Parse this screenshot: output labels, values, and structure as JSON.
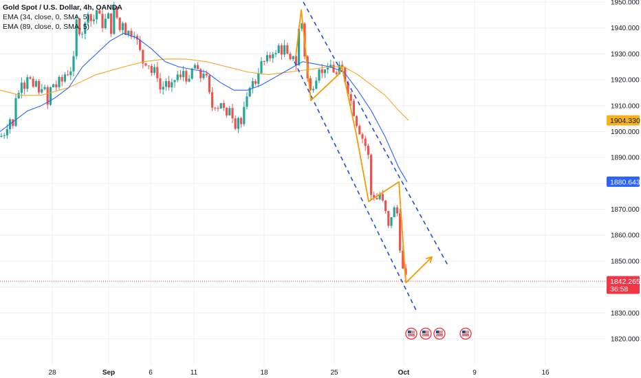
{
  "legend": {
    "title": "Gold Spot / U.S. Dollar, 4h, OANDA",
    "ema1": "EMA (34, close, 0, SMA, 5)",
    "ema2": "EMA (89, close, 0, SMA, 5)"
  },
  "colors": {
    "up": "#26a69a",
    "down": "#ef5350",
    "ema34": "#2962ff",
    "ema89": "#f5a623",
    "drawing": "#f59a00",
    "channel": "#1f4fd8",
    "grid": "#eef0f3"
  },
  "chart_data": {
    "type": "candlestick",
    "title": "Gold Spot / U.S. Dollar, 4h, OANDA",
    "x_tick_labels": [
      "28",
      "Sep",
      "6",
      "11",
      "18",
      "25",
      "Oct",
      "9",
      "16"
    ],
    "ylim": [
      1812,
      1951
    ],
    "y_ticks": [
      1820,
      1830,
      1840,
      1850,
      1860,
      1870,
      1880,
      1890,
      1900,
      1910,
      1920,
      1930,
      1940,
      1950
    ],
    "y_tick_labels": [
      "1820.000",
      "1830.000",
      "1840.000",
      "1850.000",
      "1860.000",
      "1870.000",
      "1880.000",
      "1890.000",
      "1900.000",
      "1910.000",
      "1920.000",
      "1930.000",
      "1940.000",
      "1950.000"
    ],
    "price_tags": [
      {
        "label": "1904.330",
        "value": 1904.33,
        "color": "#f5b21a",
        "text_color": "#131722"
      },
      {
        "label": "1880.643",
        "value": 1880.643,
        "color": "#2962ff",
        "text_color": "#ffffff"
      },
      {
        "label": "1842.265",
        "value": 1842.265,
        "color": "#f23645",
        "text_color": "#ffffff",
        "countdown": "36:58"
      }
    ],
    "current_price": 1842.265,
    "close_path": [
      [
        0,
        1898
      ],
      [
        6,
        1899
      ],
      [
        12,
        1903
      ],
      [
        16,
        1906
      ],
      [
        20,
        1900
      ],
      [
        24,
        1918
      ],
      [
        28,
        1914
      ],
      [
        32,
        1921
      ],
      [
        36,
        1917
      ],
      [
        40,
        1922
      ],
      [
        44,
        1920
      ],
      [
        48,
        1916
      ],
      [
        52,
        1920
      ],
      [
        56,
        1914
      ],
      [
        60,
        1917
      ],
      [
        64,
        1919
      ],
      [
        68,
        1908
      ],
      [
        72,
        1915
      ],
      [
        76,
        1920
      ],
      [
        80,
        1916
      ],
      [
        84,
        1919
      ],
      [
        88,
        1921
      ],
      [
        92,
        1918
      ],
      [
        96,
        1925
      ],
      [
        100,
        1921
      ],
      [
        104,
        1925
      ],
      [
        106,
        1919
      ],
      [
        108,
        1937
      ],
      [
        111,
        1943
      ],
      [
        114,
        1938
      ],
      [
        118,
        1940
      ],
      [
        122,
        1936
      ],
      [
        126,
        1948
      ],
      [
        130,
        1945
      ],
      [
        134,
        1941
      ],
      [
        138,
        1945
      ],
      [
        142,
        1948
      ],
      [
        146,
        1943
      ],
      [
        150,
        1940
      ],
      [
        154,
        1944
      ],
      [
        158,
        1945
      ],
      [
        162,
        1938
      ],
      [
        166,
        1948
      ],
      [
        170,
        1944
      ],
      [
        174,
        1939
      ],
      [
        178,
        1943
      ],
      [
        182,
        1938
      ],
      [
        186,
        1939
      ],
      [
        190,
        1937
      ],
      [
        194,
        1939
      ],
      [
        198,
        1936
      ],
      [
        202,
        1933
      ],
      [
        206,
        1928
      ],
      [
        210,
        1925
      ],
      [
        214,
        1928
      ],
      [
        218,
        1924
      ],
      [
        222,
        1922
      ],
      [
        226,
        1925
      ],
      [
        230,
        1920
      ],
      [
        234,
        1915
      ],
      [
        238,
        1918
      ],
      [
        242,
        1920
      ],
      [
        246,
        1916
      ],
      [
        250,
        1918
      ],
      [
        254,
        1920
      ],
      [
        258,
        1922
      ],
      [
        262,
        1920
      ],
      [
        266,
        1924
      ],
      [
        270,
        1921
      ],
      [
        274,
        1918
      ],
      [
        278,
        1923
      ],
      [
        282,
        1926
      ],
      [
        286,
        1925
      ],
      [
        290,
        1920
      ],
      [
        294,
        1922
      ],
      [
        298,
        1924
      ],
      [
        302,
        1918
      ],
      [
        306,
        1912
      ],
      [
        310,
        1908
      ],
      [
        314,
        1911
      ],
      [
        318,
        1909
      ],
      [
        322,
        1912
      ],
      [
        326,
        1908
      ],
      [
        330,
        1905
      ],
      [
        334,
        1910
      ],
      [
        338,
        1906
      ],
      [
        342,
        1902
      ],
      [
        346,
        1906
      ],
      [
        350,
        1902
      ],
      [
        354,
        1908
      ],
      [
        358,
        1911
      ],
      [
        362,
        1917
      ],
      [
        366,
        1920
      ],
      [
        370,
        1917
      ],
      [
        374,
        1922
      ],
      [
        378,
        1925
      ],
      [
        382,
        1928
      ],
      [
        386,
        1926
      ],
      [
        390,
        1930
      ],
      [
        394,
        1928
      ],
      [
        398,
        1932
      ],
      [
        402,
        1929
      ],
      [
        406,
        1934
      ],
      [
        410,
        1930
      ],
      [
        414,
        1933
      ],
      [
        418,
        1929
      ],
      [
        422,
        1927
      ],
      [
        426,
        1930
      ],
      [
        430,
        1925
      ],
      [
        433,
        1932
      ],
      [
        436,
        1946
      ],
      [
        440,
        1940
      ],
      [
        444,
        1926
      ],
      [
        448,
        1919
      ],
      [
        452,
        1915
      ],
      [
        456,
        1918
      ],
      [
        460,
        1921
      ],
      [
        464,
        1925
      ],
      [
        468,
        1922
      ],
      [
        472,
        1925
      ],
      [
        476,
        1923
      ],
      [
        480,
        1926
      ],
      [
        484,
        1924
      ],
      [
        488,
        1921
      ],
      [
        492,
        1924
      ],
      [
        496,
        1926
      ],
      [
        500,
        1922
      ],
      [
        504,
        1917
      ],
      [
        508,
        1914
      ],
      [
        512,
        1910
      ],
      [
        516,
        1905
      ],
      [
        520,
        1902
      ],
      [
        524,
        1899
      ],
      [
        528,
        1897
      ],
      [
        532,
        1894
      ],
      [
        536,
        1890
      ],
      [
        540,
        1874
      ],
      [
        544,
        1875
      ],
      [
        548,
        1874
      ],
      [
        552,
        1876
      ],
      [
        556,
        1873
      ],
      [
        560,
        1870
      ],
      [
        564,
        1862
      ],
      [
        568,
        1867
      ],
      [
        572,
        1869
      ],
      [
        576,
        1873
      ],
      [
        580,
        1860
      ],
      [
        584,
        1848
      ],
      [
        588,
        1845
      ],
      [
        592,
        1842.3
      ]
    ],
    "ema34_path": [
      [
        0,
        1900
      ],
      [
        20,
        1904
      ],
      [
        40,
        1908
      ],
      [
        60,
        1910
      ],
      [
        80,
        1913
      ],
      [
        100,
        1917
      ],
      [
        120,
        1925
      ],
      [
        140,
        1930
      ],
      [
        160,
        1935
      ],
      [
        180,
        1938
      ],
      [
        200,
        1936
      ],
      [
        220,
        1932
      ],
      [
        240,
        1927
      ],
      [
        260,
        1925
      ],
      [
        280,
        1924
      ],
      [
        300,
        1923
      ],
      [
        320,
        1919
      ],
      [
        340,
        1916
      ],
      [
        360,
        1916
      ],
      [
        380,
        1918
      ],
      [
        400,
        1921
      ],
      [
        420,
        1924
      ],
      [
        440,
        1927
      ],
      [
        460,
        1926
      ],
      [
        480,
        1925
      ],
      [
        500,
        1923
      ],
      [
        520,
        1916
      ],
      [
        540,
        1908
      ],
      [
        560,
        1898
      ],
      [
        580,
        1886
      ],
      [
        592,
        1880.6
      ]
    ],
    "ema89_path": [
      [
        0,
        1916
      ],
      [
        30,
        1914
      ],
      [
        60,
        1914
      ],
      [
        100,
        1917
      ],
      [
        140,
        1922
      ],
      [
        180,
        1925
      ],
      [
        210,
        1927
      ],
      [
        240,
        1928
      ],
      [
        270,
        1928
      ],
      [
        300,
        1927
      ],
      [
        330,
        1925
      ],
      [
        360,
        1923
      ],
      [
        390,
        1922
      ],
      [
        420,
        1923
      ],
      [
        450,
        1924
      ],
      [
        480,
        1925
      ],
      [
        500,
        1925
      ],
      [
        520,
        1922
      ],
      [
        540,
        1918
      ],
      [
        560,
        1914
      ],
      [
        580,
        1908
      ],
      [
        594,
        1904.3
      ]
    ],
    "drawings": {
      "zigzag": [
        [
          430,
          1929
        ],
        [
          438,
          1947
        ],
        [
          452,
          1912
        ],
        [
          492,
          1922
        ],
        [
          497,
          1925
        ],
        [
          518,
          1899
        ],
        [
          536,
          1873
        ],
        [
          580,
          1880.6
        ],
        [
          590,
          1841.6
        ]
      ],
      "arrow": [
        [
          590,
          1841.6
        ],
        [
          628,
          1851.6
        ]
      ],
      "channel_upper": [
        [
          441,
          1950
        ],
        [
          652,
          1848
        ]
      ],
      "channel_lower": [
        [
          428,
          1927
        ],
        [
          606,
          1830.5
        ]
      ]
    },
    "event_icon_x": [
      598,
      619,
      639,
      677
    ],
    "event_icon_value": 1822
  }
}
